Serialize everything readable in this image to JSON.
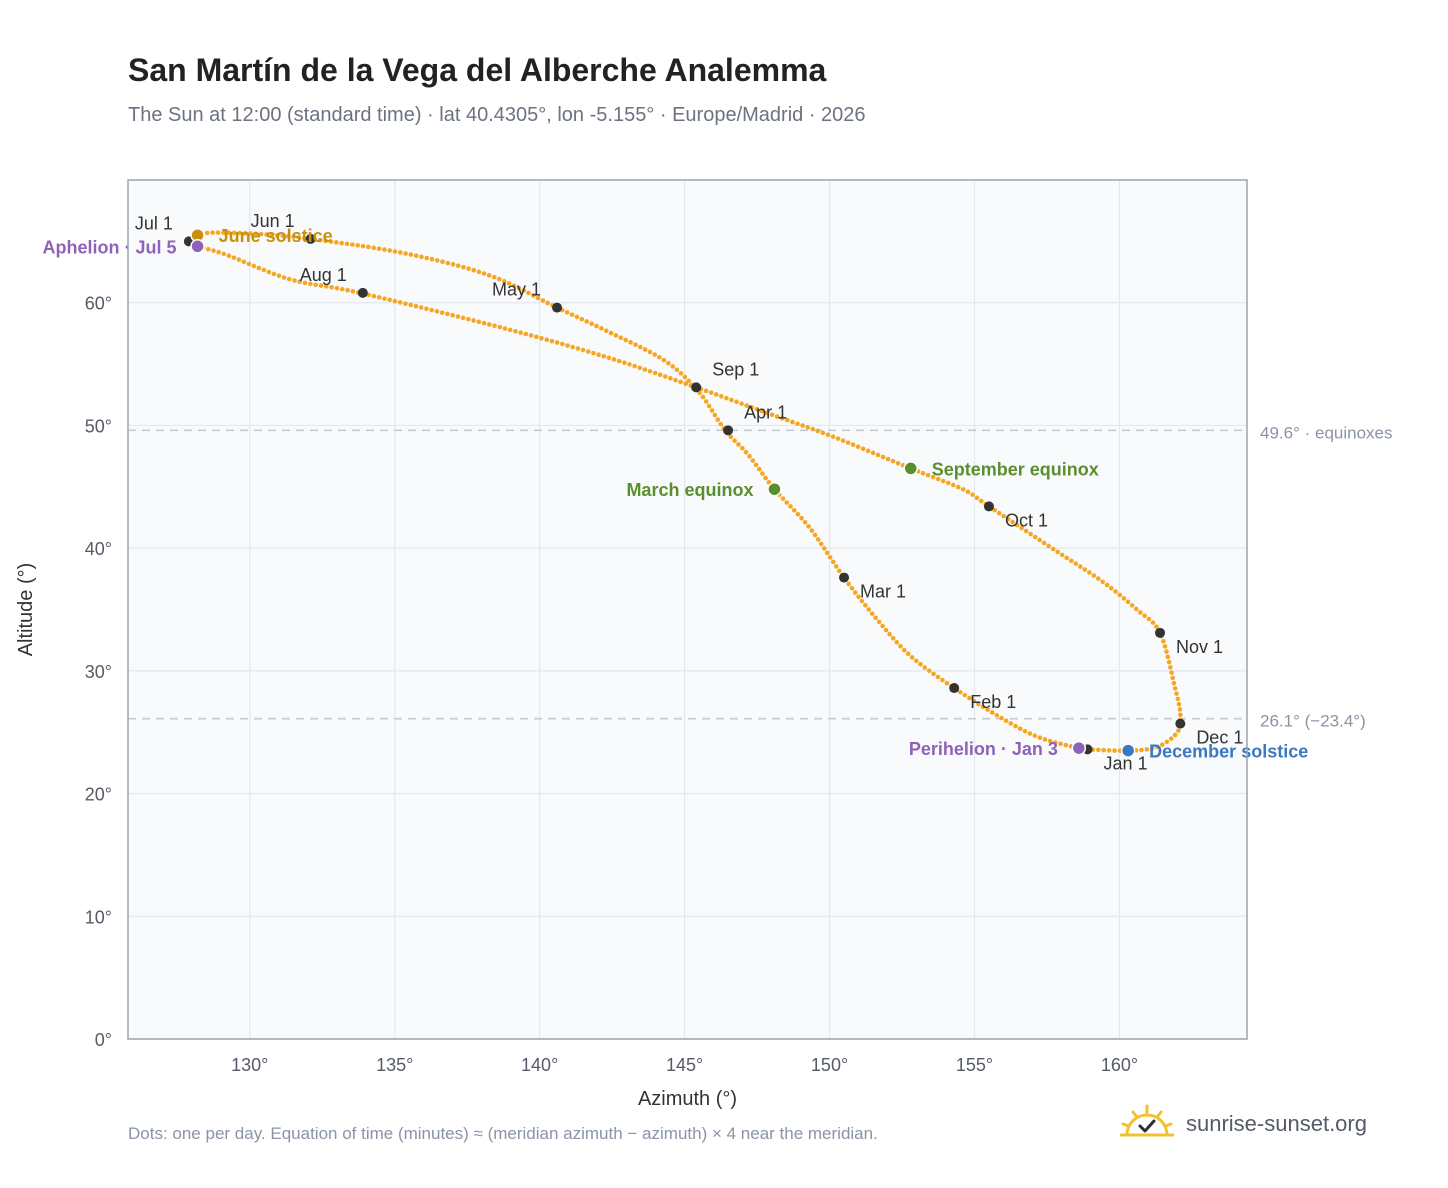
{
  "header": {
    "title": "San Martín de la Vega del Alberche Analemma",
    "subtitle": "The Sun at 12:00 (standard time) · lat 40.4305°, lon -5.155° · Europe/Madrid · 2026"
  },
  "footer": {
    "note": "Dots: one per day. Equation of time (minutes) ≈ (meridian azimuth − azimuth) × 4 near the meridian.",
    "brand": "sunrise-sunset.org",
    "brand_icon": "sun-logo-icon"
  },
  "colors": {
    "curve": "#f5a623",
    "month_marker": "#333333",
    "june_solstice": "#c8900f",
    "december_solstice": "#3b78c2",
    "equinox": "#5a8f2e",
    "apsis": "#8e62b8",
    "reference_line": "#c2cbd8",
    "plot_background": "#f8fafc"
  },
  "chart_data": {
    "type": "scatter",
    "xlabel": "Azimuth (°)",
    "ylabel": "Altitude (°)",
    "xlim": [
      125.8,
      164.4
    ],
    "ylim": [
      0,
      70
    ],
    "xticks": [
      130,
      135,
      140,
      145,
      150,
      155,
      160
    ],
    "xtick_labels": [
      "130°",
      "135°",
      "140°",
      "145°",
      "150°",
      "155°",
      "160°"
    ],
    "yticks": [
      0,
      10,
      20,
      30,
      40,
      50,
      60
    ],
    "ytick_labels": [
      "0°",
      "10°",
      "20°",
      "30°",
      "40°",
      "50°",
      "60°"
    ],
    "grid": true,
    "curve_path": [
      [
        158.9,
        23.6
      ],
      [
        160.3,
        23.5
      ],
      [
        161.3,
        23.8
      ],
      [
        162.0,
        25.0
      ],
      [
        162.1,
        26.5
      ],
      [
        161.9,
        28.8
      ],
      [
        161.4,
        33.1
      ],
      [
        160.6,
        35.0
      ],
      [
        159.4,
        37.3
      ],
      [
        157.8,
        39.8
      ],
      [
        155.5,
        43.4
      ],
      [
        154.6,
        44.8
      ],
      [
        152.8,
        46.5
      ],
      [
        150.1,
        49.1
      ],
      [
        148.1,
        50.8
      ],
      [
        145.4,
        53.1
      ],
      [
        142.4,
        55.5
      ],
      [
        138.8,
        57.9
      ],
      [
        133.8,
        60.8
      ],
      [
        131.4,
        61.9
      ],
      [
        129.2,
        63.9
      ],
      [
        128.2,
        64.6
      ],
      [
        127.9,
        65.0
      ],
      [
        128.0,
        65.3
      ],
      [
        128.6,
        65.7
      ],
      [
        130.3,
        65.6
      ],
      [
        132.1,
        65.2
      ],
      [
        135.4,
        64.0
      ],
      [
        138.3,
        62.2
      ],
      [
        140.6,
        59.6
      ],
      [
        142.4,
        57.6
      ],
      [
        144.3,
        55.3
      ],
      [
        145.5,
        52.7
      ],
      [
        146.4,
        49.6
      ],
      [
        147.2,
        47.6
      ],
      [
        148.1,
        44.8
      ],
      [
        149.3,
        41.7
      ],
      [
        150.5,
        37.6
      ],
      [
        151.6,
        34.3
      ],
      [
        152.8,
        31.2
      ],
      [
        154.3,
        28.6
      ],
      [
        155.9,
        26.2
      ],
      [
        157.2,
        24.6
      ],
      [
        158.6,
        23.7
      ],
      [
        158.9,
        23.6
      ]
    ],
    "month_markers": [
      {
        "label": "Jan 1",
        "x": 158.9,
        "y": 23.6,
        "label_pos": "below-right"
      },
      {
        "label": "Feb 1",
        "x": 154.3,
        "y": 28.6,
        "label_pos": "below-right"
      },
      {
        "label": "Mar 1",
        "x": 150.5,
        "y": 37.6,
        "label_pos": "below-right"
      },
      {
        "label": "Apr 1",
        "x": 146.5,
        "y": 49.6,
        "label_pos": "above-right"
      },
      {
        "label": "May 1",
        "x": 140.6,
        "y": 59.6,
        "label_pos": "above-left"
      },
      {
        "label": "Jun 1",
        "x": 132.1,
        "y": 65.2,
        "label_pos": "above-left"
      },
      {
        "label": "Jul 1",
        "x": 127.9,
        "y": 65.0,
        "label_pos": "above-left"
      },
      {
        "label": "Aug 1",
        "x": 133.9,
        "y": 60.8,
        "label_pos": "above-left"
      },
      {
        "label": "Sep 1",
        "x": 145.4,
        "y": 53.1,
        "label_pos": "above-right"
      },
      {
        "label": "Oct 1",
        "x": 155.5,
        "y": 43.4,
        "label_pos": "below-right"
      },
      {
        "label": "Nov 1",
        "x": 161.4,
        "y": 33.1,
        "label_pos": "below-right"
      },
      {
        "label": "Dec 1",
        "x": 162.1,
        "y": 25.7,
        "label_pos": "below-right"
      }
    ],
    "events": [
      {
        "label": "June solstice",
        "x": 128.2,
        "y": 65.5,
        "color": "#c8900f",
        "label_pos": "right"
      },
      {
        "label": "December solstice",
        "x": 160.3,
        "y": 23.5,
        "color": "#3b78c2",
        "label_pos": "right"
      },
      {
        "label": "March equinox",
        "x": 148.1,
        "y": 44.8,
        "color": "#5a8f2e",
        "label_pos": "left"
      },
      {
        "label": "September equinox",
        "x": 152.8,
        "y": 46.5,
        "color": "#5a8f2e",
        "label_pos": "right"
      },
      {
        "label": "Aphelion · Jul 5",
        "x": 128.2,
        "y": 64.6,
        "color": "#8e62b8",
        "label_pos": "left"
      },
      {
        "label": "Perihelion · Jan 3",
        "x": 158.6,
        "y": 23.7,
        "color": "#8e62b8",
        "label_pos": "left"
      }
    ],
    "reference_lines": [
      {
        "y": 49.6,
        "label": "49.6° · equinoxes"
      },
      {
        "y": 26.1,
        "label": "26.1° (−23.4°)"
      }
    ]
  }
}
